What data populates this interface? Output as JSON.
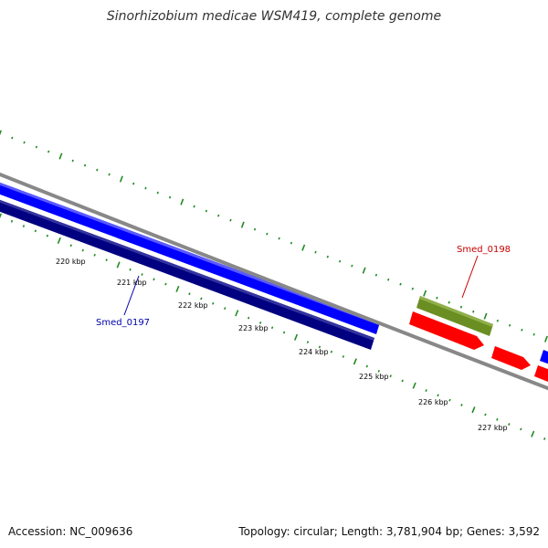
{
  "title": "Sinorhizobium medicae WSM419, complete genome",
  "accession": "Accession: NC_009636",
  "summary": "Topology: circular; Length: 3,781,904 bp; Genes: 3,592",
  "scale": {
    "labels": [
      "220 kbp",
      "221 kbp",
      "222 kbp",
      "223 kbp",
      "224 kbp",
      "225 kbp",
      "226 kbp",
      "227 kbp"
    ]
  },
  "genes": {
    "smed_0197": {
      "label": "Smed_0197",
      "color": "#0000aa"
    },
    "smed_0198": {
      "label": "Smed_0198",
      "color": "#cc0000"
    }
  },
  "colors": {
    "backbone": "#888888",
    "forward_cds": "#0000ff",
    "forward_cds_dark": "#000080",
    "reverse_cds": "#ff0000",
    "rna": "#6b8e23",
    "tick": "#228b22"
  }
}
